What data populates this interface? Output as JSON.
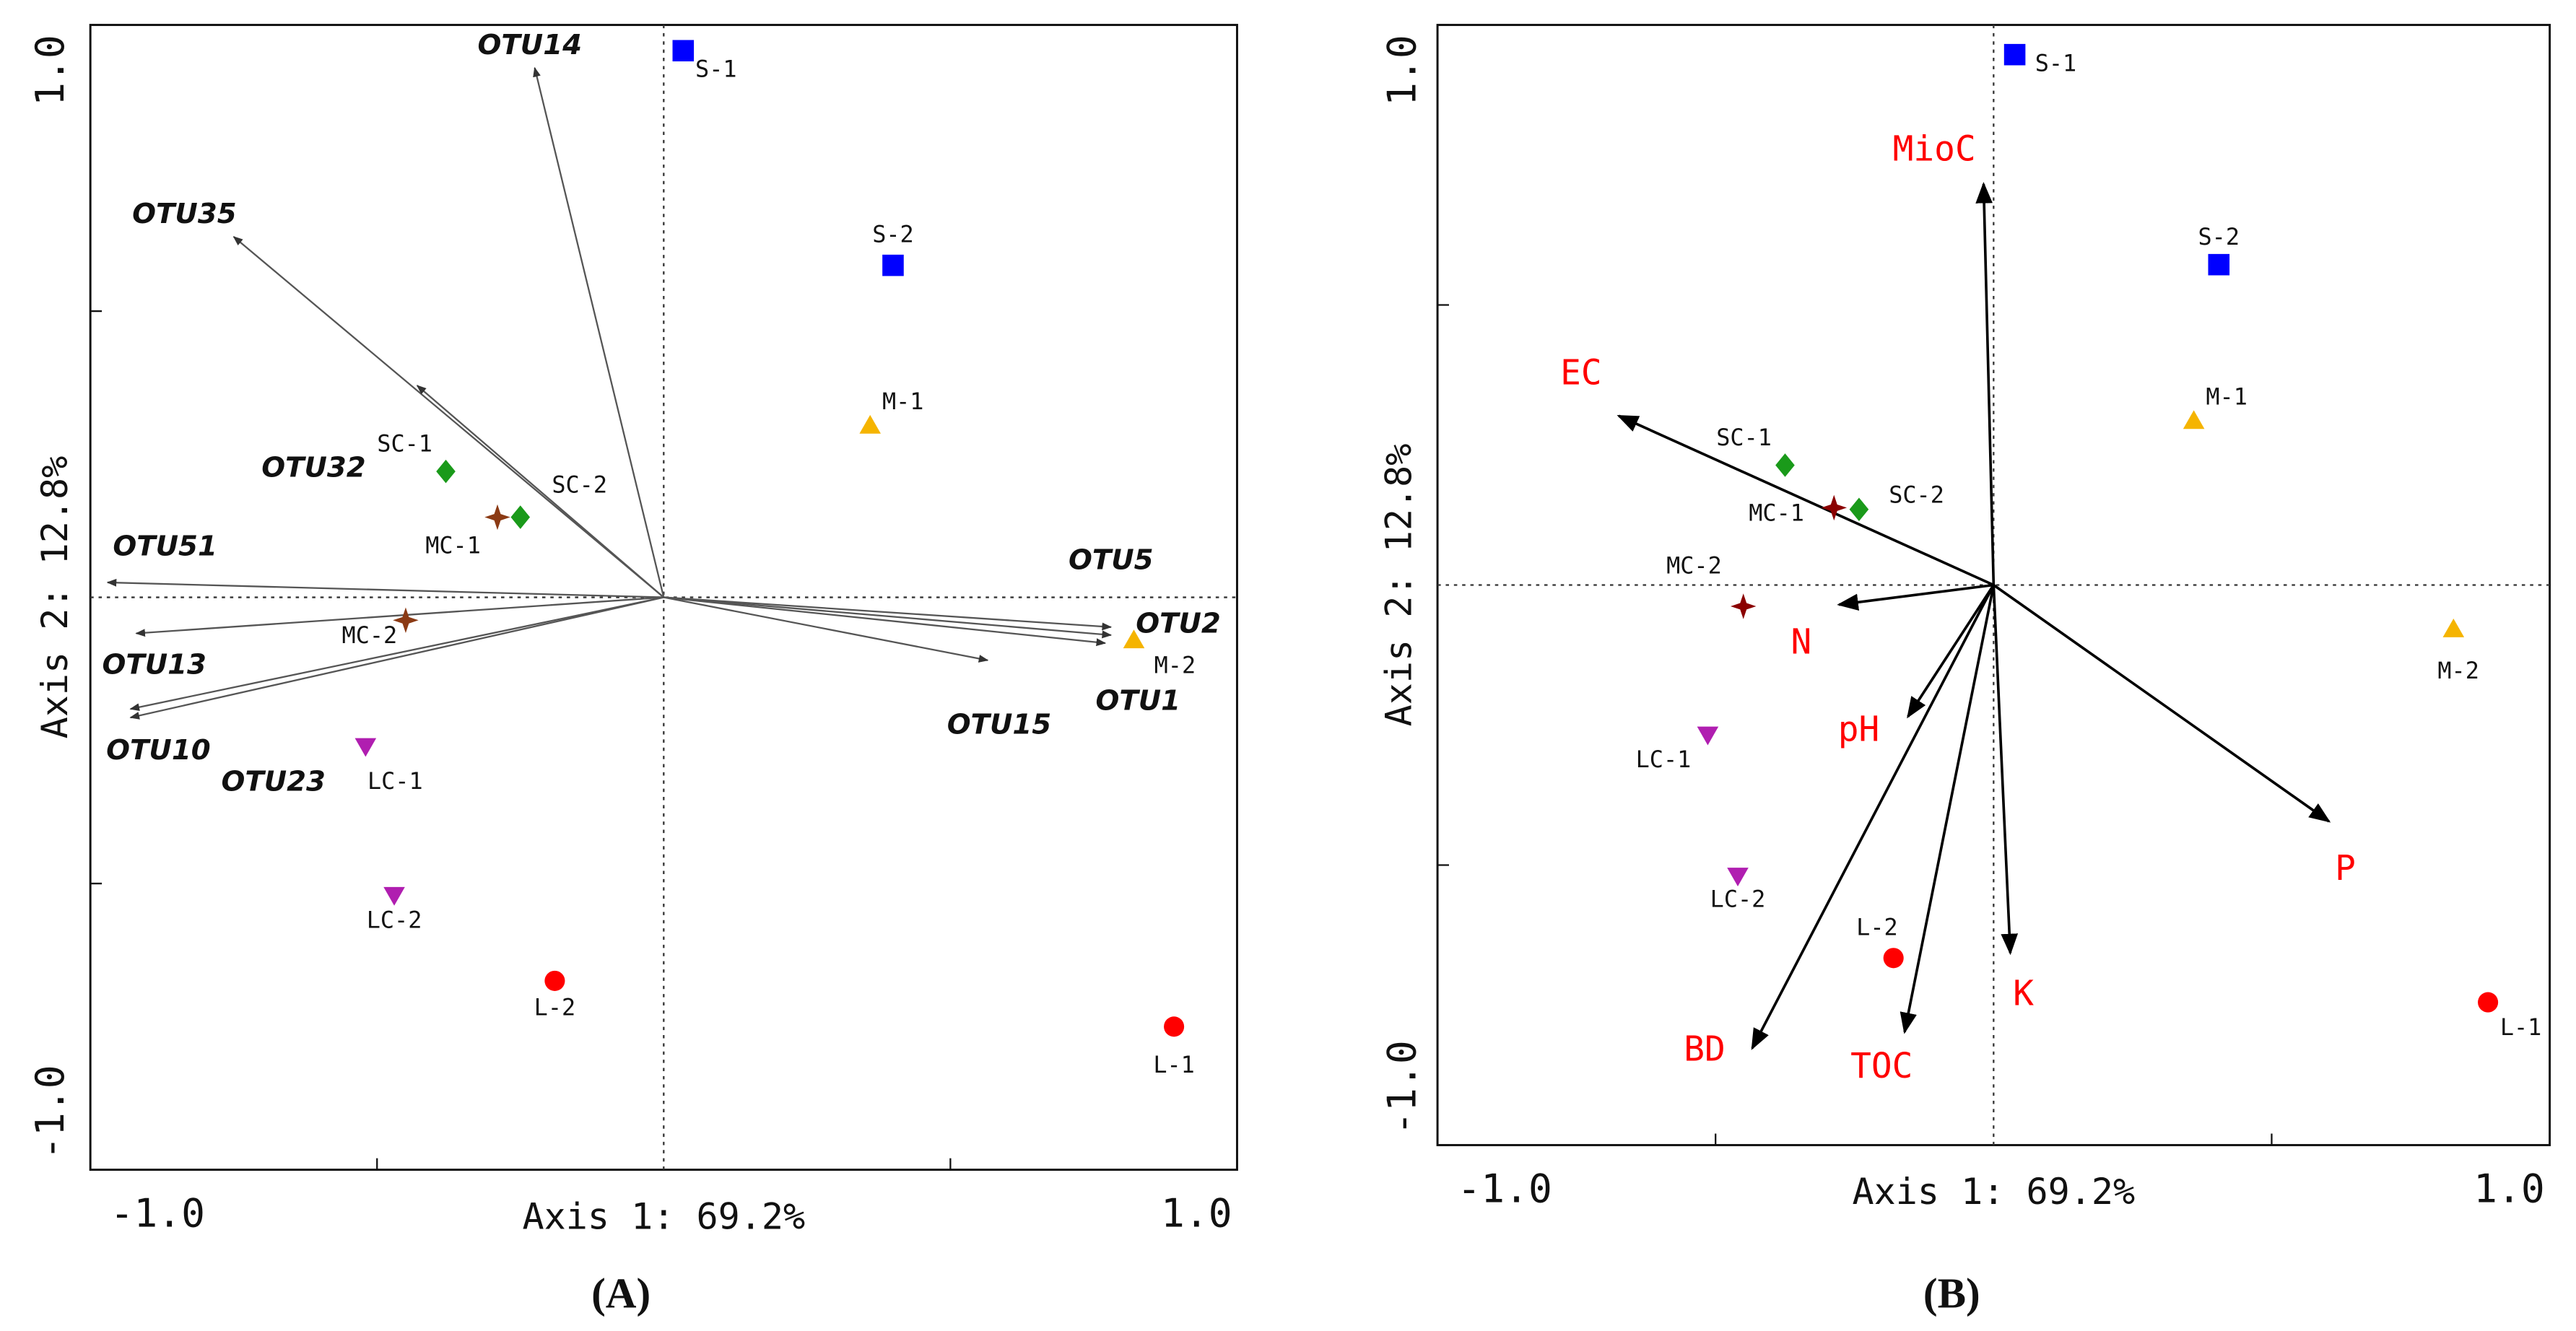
{
  "chart_data": [
    {
      "type": "biplot",
      "panel": "(A)",
      "xlabel": "Axis 1: 69.2%",
      "ylabel": "Axis 2: 12.8%",
      "xlim": [
        -1,
        1
      ],
      "ylim": [
        -1,
        1
      ],
      "xticks": [
        {
          "value": -1,
          "label": "-1.0"
        },
        {
          "value": 1,
          "label": "1.0"
        }
      ],
      "yticks": [
        {
          "value": -1,
          "label": "-1.0"
        },
        {
          "value": 1,
          "label": "1.0"
        }
      ],
      "minor_ticks": [
        -0.5,
        0.5
      ],
      "zero_lines": true,
      "points": {
        "labels": [
          "S-1",
          "S-2",
          "M-1",
          "M-2",
          "SC-1",
          "SC-2",
          "MC-1",
          "MC-2",
          "LC-1",
          "LC-2",
          "L-2",
          "L-1"
        ],
        "x": [
          0.034,
          0.4,
          0.36,
          0.82,
          -0.38,
          -0.25,
          -0.29,
          -0.45,
          -0.52,
          -0.47,
          -0.19,
          0.89
        ],
        "y": [
          0.955,
          0.58,
          0.3,
          -0.075,
          0.22,
          0.14,
          0.14,
          -0.04,
          -0.26,
          -0.52,
          -0.67,
          -0.75
        ],
        "colors": [
          "#0000ff",
          "#0000ff",
          "#f5b400",
          "#f5b400",
          "#1a9a1a",
          "#1a9a1a",
          "#8b3a14",
          "#8b3a14",
          "#b01eb0",
          "#b01eb0",
          "#ff0000",
          "#ff0000"
        ],
        "markers": [
          "square",
          "square",
          "triangle",
          "triangle",
          "diamond",
          "diamond",
          "star",
          "star",
          "triangle-down",
          "triangle-down",
          "circle",
          "circle"
        ]
      },
      "vectors": {
        "labels": [
          "OTU14",
          "OTU35",
          "OTU32",
          "OTU51",
          "OTU13",
          "OTU10",
          "OTU23",
          "OTU5",
          "OTU2",
          "OTU1",
          "OTU15"
        ],
        "x": [
          -0.225,
          -0.75,
          -0.43,
          -0.97,
          -0.92,
          -0.93,
          -0.93,
          0.78,
          0.78,
          0.77,
          0.565
        ],
        "y": [
          0.925,
          0.63,
          0.37,
          0.026,
          -0.063,
          -0.195,
          -0.21,
          -0.052,
          -0.066,
          -0.08,
          -0.11
        ],
        "color": "#555555",
        "label_color": "#111111"
      }
    },
    {
      "type": "biplot",
      "panel": "(B)",
      "xlabel": "Axis 1: 69.2%",
      "ylabel": "Axis 2: 12.8%",
      "xlim": [
        -1,
        1
      ],
      "ylim": [
        -1,
        1
      ],
      "xticks": [
        {
          "value": -1,
          "label": "-1.0"
        },
        {
          "value": 1,
          "label": "1.0"
        }
      ],
      "yticks": [
        {
          "value": -1,
          "label": "-1.0"
        },
        {
          "value": 1,
          "label": "1.0"
        }
      ],
      "minor_ticks": [
        -0.5,
        0.5
      ],
      "zero_lines": true,
      "points": {
        "labels": [
          "S-1",
          "S-2",
          "M-1",
          "M-2",
          "SC-1",
          "SC-2",
          "MC-1",
          "MC-2",
          "LC-1",
          "LC-2",
          "L-2",
          "L-1"
        ],
        "x": [
          0.038,
          0.405,
          0.36,
          0.827,
          -0.375,
          -0.242,
          -0.287,
          -0.45,
          -0.514,
          -0.46,
          -0.18,
          0.889
        ],
        "y": [
          0.947,
          0.572,
          0.293,
          -0.079,
          0.214,
          0.135,
          0.138,
          -0.038,
          -0.267,
          -0.519,
          -0.666,
          -0.745
        ],
        "colors": [
          "#0000ff",
          "#0000ff",
          "#f5b400",
          "#f5b400",
          "#1a9a1a",
          "#1a9a1a",
          "#8b0000",
          "#8b0000",
          "#b01eb0",
          "#b01eb0",
          "#ff0000",
          "#ff0000"
        ],
        "markers": [
          "square",
          "square",
          "triangle",
          "triangle",
          "diamond",
          "diamond",
          "star",
          "star",
          "triangle-down",
          "triangle-down",
          "circle",
          "circle"
        ]
      },
      "vectors": {
        "labels": [
          "MioC",
          "EC",
          "N",
          "pH",
          "BD",
          "TOC",
          "K",
          "P"
        ],
        "x": [
          -0.018,
          -0.674,
          -0.278,
          -0.154,
          -0.434,
          -0.16,
          0.03,
          0.603
        ],
        "y": [
          0.716,
          0.302,
          -0.035,
          -0.235,
          -0.827,
          -0.798,
          -0.657,
          -0.422
        ],
        "color": "#000000",
        "label_color": "#ff0000"
      }
    }
  ]
}
